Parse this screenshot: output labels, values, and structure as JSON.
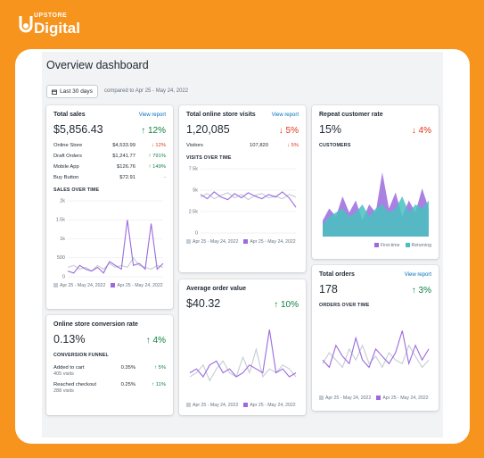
{
  "logo": {
    "top": "UPSTORE",
    "bottom": "Digital"
  },
  "header": {
    "title": "Overview dashboard",
    "date_button": "Last 30 days",
    "comparison": "compared to Apr 25 - May 24, 2022"
  },
  "cards": [
    {
      "title": "Total sales",
      "link": "View report",
      "value": "$5,856.43",
      "change": {
        "text": "↑ 12%",
        "color": "#108043"
      },
      "rows": [
        {
          "label": "Online Store",
          "value": "$4,533.99",
          "change": {
            "text": "↓ 12%",
            "color": "#de3618"
          }
        },
        {
          "label": "Draft Orders",
          "value": "$1,241.77",
          "change": {
            "text": "↑ 791%",
            "color": "#108043"
          }
        },
        {
          "label": "Mobile App",
          "value": "$126.76",
          "change": {
            "text": "↑ 149%",
            "color": "#108043"
          }
        },
        {
          "label": "Buy Button",
          "value": "$72.91",
          "change": {
            "text": "-",
            "color": "#637381"
          }
        }
      ],
      "chart": {
        "type": "line",
        "label": "SALES OVER TIME",
        "ylim": [
          0,
          2000
        ],
        "yticks": [
          0,
          500,
          {
            "value": 1000,
            "label": "1k"
          },
          {
            "value": 1500,
            "label": "1.5k"
          },
          {
            "value": 2000,
            "label": "2k"
          }
        ],
        "series": [
          {
            "name": "Apr 25 - May 24, 2022",
            "color": "#c4cdd5",
            "values": [
              250,
              300,
              200,
              250,
              150,
              300,
              200,
              350,
              250,
              300,
              250,
              500,
              300,
              250,
              200,
              300,
              250
            ]
          },
          {
            "name": "Apr 25 - May 24, 2022",
            "color": "#9c6ade",
            "values": [
              150,
              100,
              300,
              200,
              150,
              250,
              100,
              400,
              300,
              200,
              1500,
              300,
              350,
              200,
              1400,
              200,
              350
            ]
          }
        ]
      }
    },
    {
      "title": "Total online store visits",
      "link": "View report",
      "value": "1,20,085",
      "change": {
        "text": "↓ 5%",
        "color": "#de3618"
      },
      "rows": [
        {
          "label": "Visitors",
          "value": "107,820",
          "change": {
            "text": "↓ 5%",
            "color": "#de3618"
          }
        }
      ],
      "chart": {
        "type": "line",
        "label": "VISITS OVER TIME",
        "ylim": [
          0,
          7500
        ],
        "yticks": [
          0,
          {
            "value": 2500,
            "label": "2.5k"
          },
          {
            "value": 5000,
            "label": "5k"
          },
          {
            "value": 7500,
            "label": "7.5k"
          }
        ],
        "series": [
          {
            "name": "Apr 25 - May 24, 2022",
            "color": "#c4cdd5",
            "values": [
              4200,
              4600,
              4000,
              4400,
              4700,
              4100,
              4500,
              3900,
              4400,
              4600,
              4100,
              4300,
              4000,
              4500,
              4200
            ]
          },
          {
            "name": "Apr 25 - May 24, 2022",
            "color": "#9c6ade",
            "values": [
              4500,
              4000,
              4800,
              4200,
              3900,
              4600,
              4100,
              4700,
              4300,
              4000,
              4500,
              4200,
              4800,
              4100,
              3000
            ]
          }
        ]
      }
    },
    {
      "title": "Repeat customer rate",
      "value": "15%",
      "change": {
        "text": "↓ 4%",
        "color": "#de3618"
      },
      "chart": {
        "type": "area",
        "label": "CUSTOMERS",
        "ylim": [
          0,
          100
        ],
        "series": [
          {
            "name": "First-time",
            "color": "#9c6ade",
            "values": [
              20,
              35,
              25,
              50,
              30,
              45,
              20,
              40,
              30,
              80,
              35,
              55,
              25,
              45,
              30,
              60,
              35
            ]
          },
          {
            "name": "Returning",
            "color": "#47c1bf",
            "values": [
              15,
              25,
              30,
              35,
              25,
              30,
              40,
              25,
              35,
              40,
              30,
              35,
              50,
              30,
              40,
              35,
              45
            ]
          }
        ]
      }
    },
    {
      "title": "Online store conversion rate",
      "value": "0.13%",
      "change": {
        "text": "↑ 4%",
        "color": "#108043"
      },
      "section": "CONVERSION FUNNEL",
      "rows": [
        {
          "label": "Added to cart",
          "sub": "405 visits",
          "value": "0.35%",
          "change": {
            "text": "↑ 5%",
            "color": "#108043"
          }
        },
        {
          "label": "Reached checkout",
          "sub": "288 visits",
          "value": "0.25%",
          "change": {
            "text": "↑ 11%",
            "color": "#108043"
          }
        }
      ]
    },
    {
      "title": "Average order value",
      "value": "$40.32",
      "change": {
        "text": "↑ 10%",
        "color": "#108043"
      },
      "chart": {
        "type": "line",
        "ylim": [
          0,
          100
        ],
        "series": [
          {
            "name": "Apr 25 - May 24, 2022",
            "color": "#c4cdd5",
            "values": [
              25,
              30,
              40,
              20,
              35,
              45,
              30,
              25,
              50,
              30,
              60,
              25,
              35,
              30,
              40,
              35,
              25
            ]
          },
          {
            "name": "Apr 25 - May 24, 2022",
            "color": "#9c6ade",
            "values": [
              30,
              35,
              25,
              40,
              45,
              30,
              35,
              25,
              30,
              40,
              35,
              30,
              85,
              30,
              35,
              25,
              30
            ]
          }
        ]
      }
    },
    {
      "title": "Total orders",
      "link": "View report",
      "value": "178",
      "change": {
        "text": "↑ 3%",
        "color": "#108043"
      },
      "chart": {
        "type": "line",
        "label": "ORDERS OVER TIME",
        "ylim": [
          0,
          100
        ],
        "series": [
          {
            "name": "Apr 25 - May 24, 2022",
            "color": "#c4cdd5",
            "values": [
              35,
              50,
              40,
              30,
              55,
              40,
              60,
              35,
              45,
              30,
              50,
              40,
              35,
              60,
              45,
              30,
              40
            ]
          },
          {
            "name": "Apr 25 - May 24, 2022",
            "color": "#9c6ade",
            "values": [
              40,
              30,
              60,
              45,
              35,
              70,
              40,
              30,
              55,
              45,
              35,
              50,
              80,
              35,
              60,
              40,
              55
            ]
          }
        ]
      }
    }
  ]
}
